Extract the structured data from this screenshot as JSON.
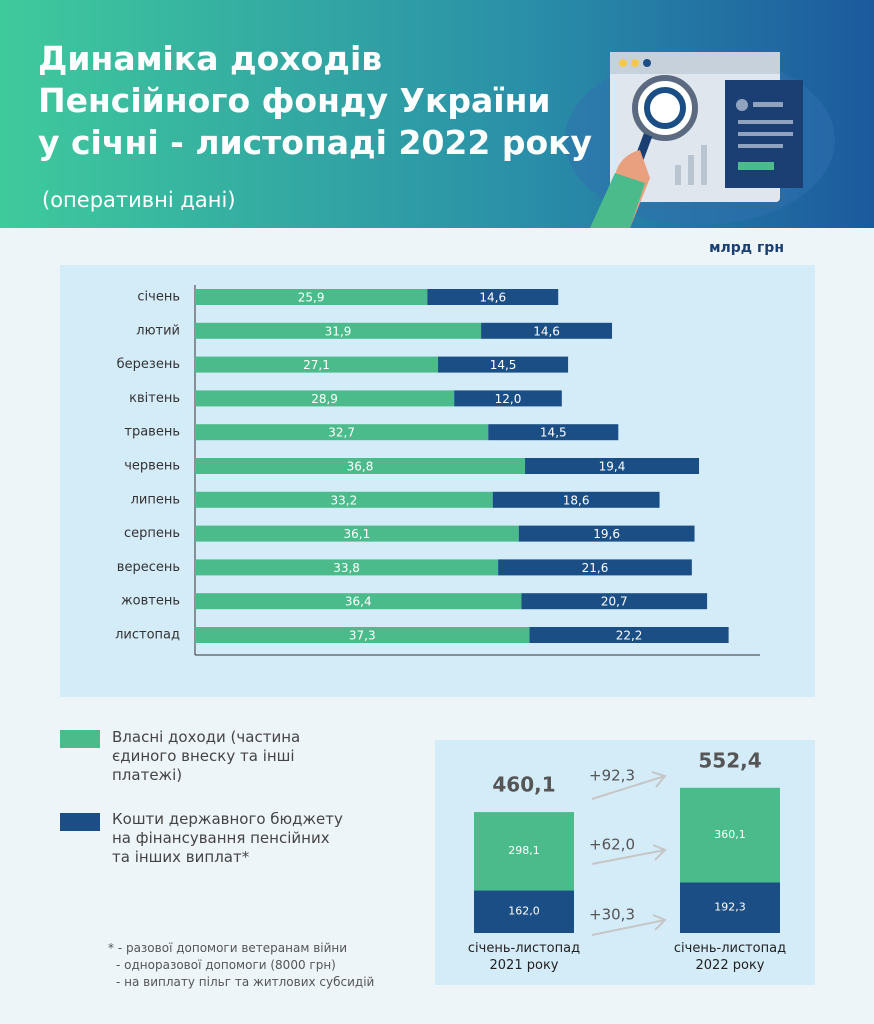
{
  "header": {
    "title": [
      "Динаміка доходів",
      "Пенсійного фонду України",
      "у січні - листопаді 2022 року"
    ],
    "subtitle": "(оперативні дані)"
  },
  "chart_data": [
    {
      "type": "hbar_stacked",
      "unit": "млрд грн",
      "categories": [
        "січень",
        "лютий",
        "березень",
        "квітень",
        "травень",
        "червень",
        "липень",
        "серпень",
        "вересень",
        "жовтень",
        "листопад"
      ],
      "series": [
        {
          "name": "Власні доходи (частина єдиного внеску та інші платежі)",
          "color": "#4cbb8b",
          "values": [
            25.9,
            31.9,
            27.1,
            28.9,
            32.7,
            36.8,
            33.2,
            36.1,
            33.8,
            36.4,
            37.3
          ],
          "value_labels": [
            "25,9",
            "31,9",
            "27,1",
            "28,9",
            "32,7",
            "36,8",
            "33,2",
            "36,1",
            "33,8",
            "36,4",
            "37,3"
          ]
        },
        {
          "name": "Кошти державного бюджету на фінансування пенсійних та інших виплат*",
          "color": "#1b4e85",
          "values": [
            14.6,
            14.6,
            14.5,
            12.0,
            14.5,
            19.4,
            18.6,
            19.6,
            21.6,
            20.7,
            22.2
          ],
          "value_labels": [
            "14,6",
            "14,6",
            "14,5",
            "12,0",
            "14,5",
            "19,4",
            "18,6",
            "19,6",
            "21,6",
            "20,7",
            "22,2"
          ]
        }
      ],
      "xlim": [
        0,
        63
      ]
    },
    {
      "type": "vbar_stacked",
      "categories": [
        "січень-листопад 2021 року",
        "січень-листопад 2022 року"
      ],
      "series": [
        {
          "color": "#4cbb8b",
          "values": [
            298.1,
            360.1
          ],
          "value_labels": [
            "298,1",
            "360,1"
          ]
        },
        {
          "color": "#1b4e85",
          "values": [
            162.0,
            192.3
          ],
          "value_labels": [
            "162,0",
            "192,3"
          ]
        }
      ],
      "totals": {
        "values": [
          460.1,
          552.4
        ],
        "value_labels": [
          "460,1",
          "552,4"
        ]
      },
      "annotations": [
        "+92,3",
        "+62,0",
        "+30,3"
      ],
      "ylim": [
        0,
        700
      ]
    }
  ],
  "footnote": [
    "* -  разової допомоги ветеранам війни",
    "-  одноразової допомоги (8000 грн)",
    "-  на виплату пільг та житлових субсидій"
  ]
}
